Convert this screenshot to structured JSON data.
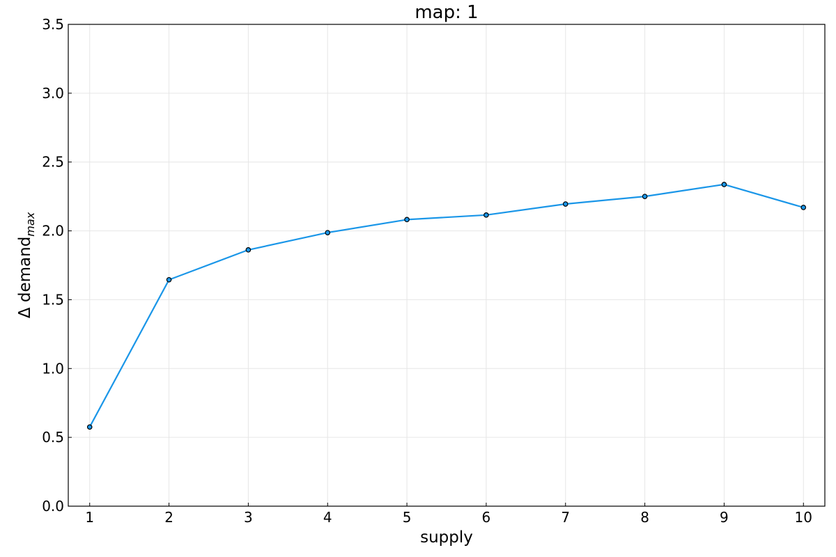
{
  "chart_data": {
    "type": "line",
    "title": "map: 1",
    "xlabel": "supply",
    "ylabel": {
      "prefix": "Δ demand",
      "subscript": "max"
    },
    "x": [
      1,
      2,
      3,
      4,
      5,
      6,
      7,
      8,
      9,
      10
    ],
    "series": [
      {
        "values": [
          0.575,
          1.645,
          1.862,
          1.987,
          2.082,
          2.115,
          2.195,
          2.25,
          2.337,
          2.17
        ]
      }
    ],
    "xlim": [
      0.73,
      10.27
    ],
    "ylim": [
      0,
      3.5
    ],
    "xticks": [
      "1",
      "2",
      "3",
      "4",
      "5",
      "6",
      "7",
      "8",
      "9",
      "10"
    ],
    "yticks": [
      "0.0",
      "0.5",
      "1.0",
      "1.5",
      "2.0",
      "2.5",
      "3.0",
      "3.5"
    ],
    "grid": true,
    "colors": {
      "line": "#1a96e8",
      "marker_edge": "#000000",
      "grid": "#e6e6e6"
    }
  }
}
